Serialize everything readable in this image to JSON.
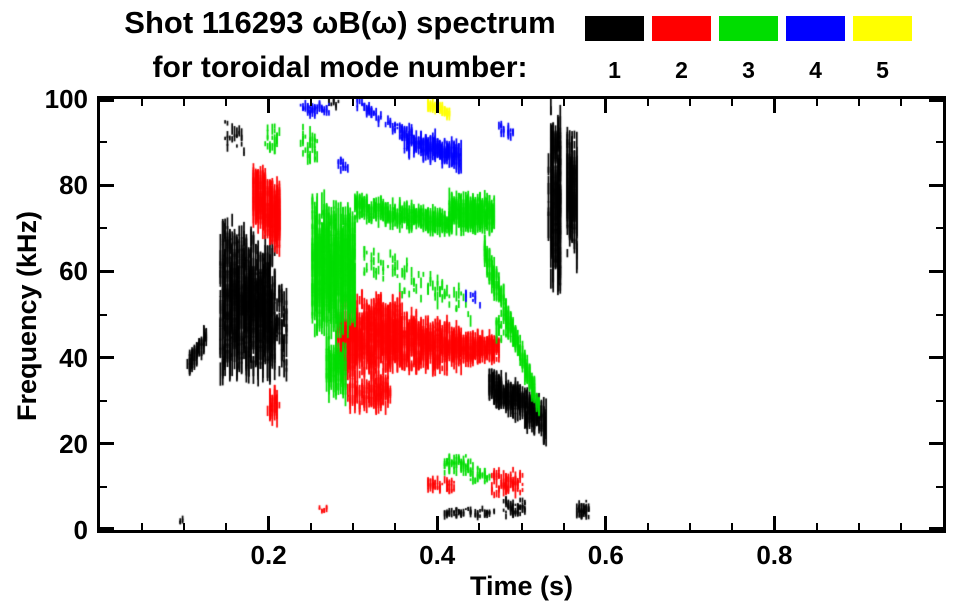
{
  "chart_data": {
    "type": "scatter",
    "title": "Shot 116293 ωB(ω) spectrum",
    "legend_title": "for toroidal mode number:",
    "xlabel": "Time (s)",
    "ylabel": "Frequency (kHz)",
    "xlim": [
      0.0,
      1.0
    ],
    "ylim": [
      0,
      100
    ],
    "background": "#ffffff",
    "axis_color": "#000000",
    "grid": false,
    "legend_position": "top-right",
    "xticks": {
      "values": [
        0.2,
        0.4,
        0.6,
        0.8
      ],
      "labels": [
        "0.2",
        "0.4",
        "0.6",
        "0.8"
      ],
      "minor_step": 0.05
    },
    "yticks": {
      "values": [
        0,
        20,
        40,
        60,
        80,
        100
      ],
      "labels": [
        "0",
        "20",
        "40",
        "60",
        "80",
        "100"
      ],
      "minor_step": 10
    },
    "legend": [
      {
        "label": "1",
        "color": "#000000"
      },
      {
        "label": "2",
        "color": "#ff0000"
      },
      {
        "label": "3",
        "color": "#00dd00"
      },
      {
        "label": "4",
        "color": "#0000ff"
      },
      {
        "label": "5",
        "color": "#ffff00"
      }
    ],
    "series": [
      {
        "name": "n=1",
        "color": "#000000",
        "clusters": [
          {
            "t": [
              0.104,
              0.127
            ],
            "fc": [
              38,
              45
            ],
            "hw": [
              3,
              3
            ],
            "n": 70,
            "len": 3
          },
          {
            "t": [
              0.143,
              0.207
            ],
            "fc": [
              55,
              51
            ],
            "hw": [
              20,
              17
            ],
            "n": 1100,
            "len": 4.5
          },
          {
            "t": [
              0.205,
              0.222
            ],
            "fc": [
              48,
              46
            ],
            "hw": [
              13,
              11
            ],
            "n": 90,
            "len": 3.5
          },
          {
            "t": [
              0.149,
              0.172
            ],
            "fc": [
              91,
              91
            ],
            "hw": [
              4,
              4
            ],
            "n": 22,
            "len": 2
          },
          {
            "t": [
              0.272,
              0.283
            ],
            "fc": [
              99,
              99
            ],
            "hw": [
              1.2,
              1.2
            ],
            "n": 10,
            "len": 1.5
          },
          {
            "t": [
              0.462,
              0.53
            ],
            "fc": [
              34,
              25
            ],
            "hw": [
              3.5,
              5
            ],
            "n": 420,
            "len": 3.5
          },
          {
            "t": [
              0.533,
              0.547
            ],
            "fc": [
              78,
              77
            ],
            "hw": [
              22,
              22
            ],
            "n": 330,
            "len": 5
          },
          {
            "t": [
              0.553,
              0.567
            ],
            "fc": [
              79,
              77
            ],
            "hw": [
              15,
              16
            ],
            "n": 240,
            "len": 4.5
          },
          {
            "t": [
              0.408,
              0.468
            ],
            "fc": [
              4,
              4
            ],
            "hw": [
              1.2,
              1.2
            ],
            "n": 70,
            "len": 1.2
          },
          {
            "t": [
              0.478,
              0.506
            ],
            "fc": [
              5,
              5
            ],
            "hw": [
              2.2,
              2.2
            ],
            "n": 60,
            "len": 1.5
          },
          {
            "t": [
              0.565,
              0.58
            ],
            "fc": [
              5,
              4.5
            ],
            "hw": [
              2.5,
              2.5
            ],
            "n": 45,
            "len": 1.5
          },
          {
            "t": [
              0.094,
              0.1
            ],
            "fc": [
              2,
              2
            ],
            "hw": [
              1,
              1
            ],
            "n": 6,
            "len": 1
          }
        ]
      },
      {
        "name": "n=2",
        "color": "#ff0000",
        "clusters": [
          {
            "t": [
              0.182,
              0.214
            ],
            "fc": [
              78,
              72
            ],
            "hw": [
              7,
              8
            ],
            "n": 420,
            "len": 4
          },
          {
            "t": [
              0.2,
              0.212
            ],
            "fc": [
              29,
              28
            ],
            "hw": [
              4,
              4
            ],
            "n": 45,
            "len": 3
          },
          {
            "t": [
              0.283,
              0.36
            ],
            "fc": [
              45,
              45
            ],
            "hw": [
              11,
              8
            ],
            "n": 850,
            "len": 4
          },
          {
            "t": [
              0.36,
              0.43
            ],
            "fc": [
              44,
              42.5
            ],
            "hw": [
              7,
              5
            ],
            "n": 520,
            "len": 3.5
          },
          {
            "t": [
              0.43,
              0.474
            ],
            "fc": [
              42.5,
              42
            ],
            "hw": [
              4,
              2.5
            ],
            "n": 260,
            "len": 3
          },
          {
            "t": [
              0.295,
              0.345
            ],
            "fc": [
              32,
              32
            ],
            "hw": [
              4,
              4
            ],
            "n": 130,
            "len": 3.5
          },
          {
            "t": [
              0.388,
              0.42
            ],
            "fc": [
              10.5,
              10.5
            ],
            "hw": [
              2,
              2
            ],
            "n": 55,
            "len": 1.5
          },
          {
            "t": [
              0.464,
              0.5
            ],
            "fc": [
              11,
              11
            ],
            "hw": [
              3.5,
              3.5
            ],
            "n": 90,
            "len": 2
          },
          {
            "t": [
              0.261,
              0.268
            ],
            "fc": [
              5,
              5
            ],
            "hw": [
              1,
              1
            ],
            "n": 8,
            "len": 1.2
          }
        ]
      },
      {
        "name": "n=3",
        "color": "#00dd00",
        "clusters": [
          {
            "t": [
              0.252,
              0.302
            ],
            "fc": [
              62,
              60
            ],
            "hw": [
              16,
              14
            ],
            "n": 1000,
            "len": 4.5
          },
          {
            "t": [
              0.268,
              0.292
            ],
            "fc": [
              39,
              37
            ],
            "hw": [
              7,
              6
            ],
            "n": 130,
            "len": 4
          },
          {
            "t": [
              0.302,
              0.418
            ],
            "fc": [
              75,
              71
            ],
            "hw": [
              3,
              2.5
            ],
            "n": 480,
            "len": 2.5
          },
          {
            "t": [
              0.415,
              0.467
            ],
            "fc": [
              74,
              73
            ],
            "hw": [
              4,
              4.5
            ],
            "n": 420,
            "len": 3
          },
          {
            "t": [
              0.455,
              0.522
            ],
            "fc": [
              65,
              28
            ],
            "hw": [
              4,
              3
            ],
            "n": 260,
            "len": 3
          },
          {
            "t": [
              0.238,
              0.258
            ],
            "fc": [
              90,
              89
            ],
            "hw": [
              5,
              5
            ],
            "n": 32,
            "len": 2
          },
          {
            "t": [
              0.196,
              0.212
            ],
            "fc": [
              91,
              90
            ],
            "hw": [
              4,
              4
            ],
            "n": 22,
            "len": 2
          },
          {
            "t": [
              0.312,
              0.44
            ],
            "fc": [
              63,
              52
            ],
            "hw": [
              5,
              4
            ],
            "n": 90,
            "len": 2
          },
          {
            "t": [
              0.408,
              0.44
            ],
            "fc": [
              15.5,
              15
            ],
            "hw": [
              2.5,
              2.5
            ],
            "n": 70,
            "len": 1.5
          },
          {
            "t": [
              0.44,
              0.462
            ],
            "fc": [
              13,
              12.5
            ],
            "hw": [
              2,
              2
            ],
            "n": 32,
            "len": 1.5
          },
          {
            "t": [
              0.468,
              0.492
            ],
            "fc": [
              47,
              46
            ],
            "hw": [
              3,
              3
            ],
            "n": 45,
            "len": 2
          }
        ]
      },
      {
        "name": "n=4",
        "color": "#0000ff",
        "clusters": [
          {
            "t": [
              0.305,
              0.362
            ],
            "fc": [
              99,
              92
            ],
            "hw": [
              1.5,
              2
            ],
            "n": 70,
            "len": 1.5
          },
          {
            "t": [
              0.36,
              0.428
            ],
            "fc": [
              91,
              86.5
            ],
            "hw": [
              3.5,
              3.5
            ],
            "n": 280,
            "len": 2.5
          },
          {
            "t": [
              0.238,
              0.274
            ],
            "fc": [
              98,
              97.5
            ],
            "hw": [
              1.8,
              1.8
            ],
            "n": 45,
            "len": 1.5
          },
          {
            "t": [
              0.282,
              0.294
            ],
            "fc": [
              85,
              84
            ],
            "hw": [
              2,
              2
            ],
            "n": 14,
            "len": 1.5
          },
          {
            "t": [
              0.474,
              0.492
            ],
            "fc": [
              93,
              92
            ],
            "hw": [
              1.5,
              1.5
            ],
            "n": 22,
            "len": 1.5
          },
          {
            "t": [
              0.432,
              0.452
            ],
            "fc": [
              55,
              53
            ],
            "hw": [
              2,
              2
            ],
            "n": 12,
            "len": 1.5
          }
        ]
      },
      {
        "name": "n=5",
        "color": "#ffff00",
        "clusters": [
          {
            "t": [
              0.388,
              0.416
            ],
            "fc": [
              99,
              96.5
            ],
            "hw": [
              1.2,
              1.5
            ],
            "n": 60,
            "len": 1.8
          }
        ]
      }
    ]
  }
}
